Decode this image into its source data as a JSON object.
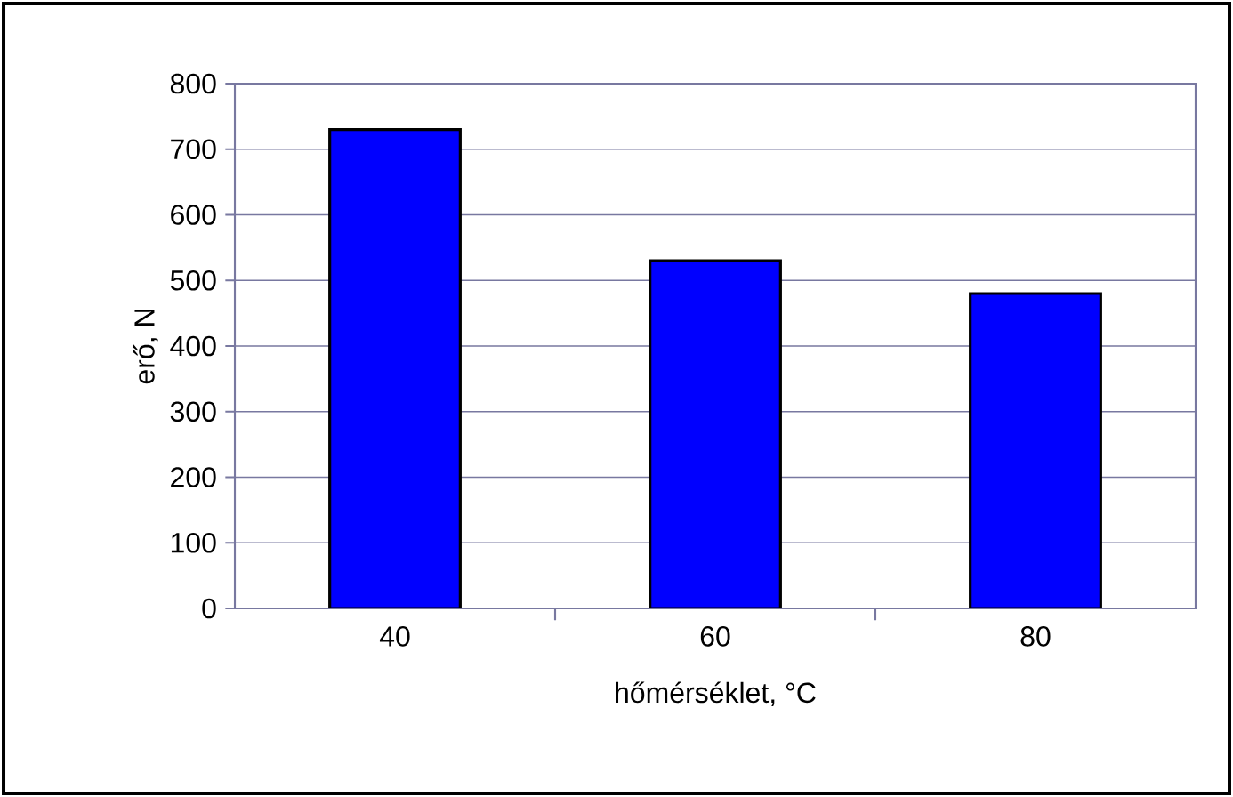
{
  "chart_data": {
    "type": "bar",
    "xlabel": "hőmérséklet, °C",
    "ylabel": "erő, N",
    "categories": [
      "40",
      "60",
      "80"
    ],
    "values": [
      730,
      530,
      480
    ],
    "color": "#0000ff",
    "ylim": [
      0,
      800
    ],
    "yticks": [
      0,
      100,
      200,
      300,
      400,
      500,
      600,
      700,
      800
    ],
    "grid": "y"
  }
}
